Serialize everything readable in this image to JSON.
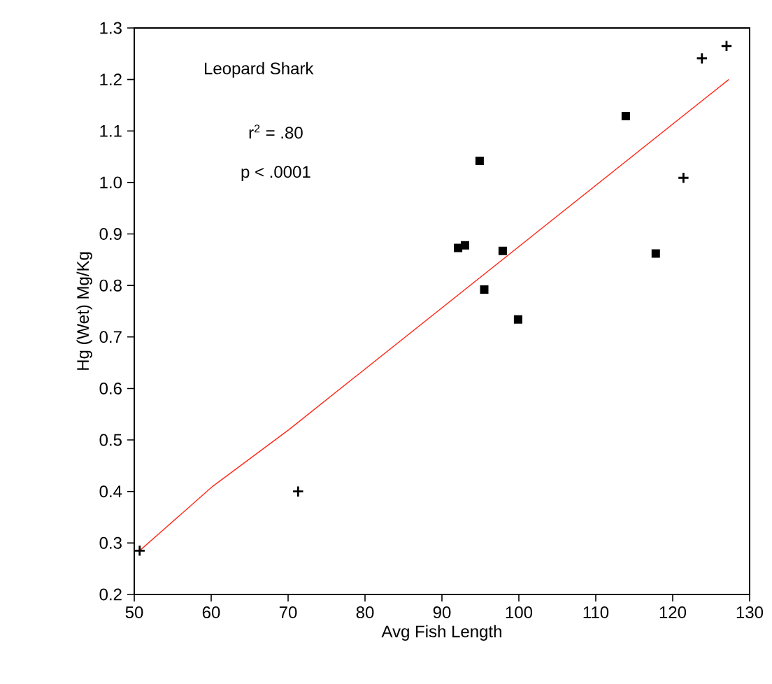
{
  "chart_data": {
    "type": "scatter",
    "xlabel": "Avg Fish Length",
    "ylabel": "Hg (Wet) Mg/Kg",
    "annotations": [
      "Leopard Shark",
      "r$^{2}$ = .80",
      "p < .0001"
    ],
    "xlim": [
      50,
      130
    ],
    "xticks": [
      50,
      60,
      70,
      80,
      90,
      100,
      110,
      120,
      130
    ],
    "ylim": [
      0.2,
      1.3
    ],
    "yticks": [
      0.2,
      0.3,
      0.4,
      0.5,
      0.6,
      0.7,
      0.8,
      0.9,
      {
        "value": 1.0,
        "label": "1.0"
      },
      1.1,
      1.2,
      1.3
    ],
    "grid": false,
    "series": [
      {
        "marker": "square",
        "color": "#000000",
        "x": [
          92.1,
          93.0,
          94.9,
          97.9,
          95.5,
          99.9,
          113.9,
          117.8
        ],
        "values": [
          0.873,
          0.878,
          1.042,
          0.867,
          0.792,
          0.734,
          1.129,
          0.862
        ]
      },
      {
        "marker": "cross",
        "color": "#000000",
        "x": [
          50.7,
          71.3,
          121.4,
          123.8,
          127.0
        ],
        "values": [
          0.285,
          0.4,
          1.009,
          1.241,
          1.265
        ]
      },
      {
        "type": "line",
        "marker": "none",
        "line_style": "solid",
        "color": "#ff2a1a",
        "x": [
          50.7,
          60.2,
          70.1,
          127.3
        ],
        "values": [
          0.285,
          0.41,
          0.52,
          1.2
        ]
      }
    ]
  }
}
